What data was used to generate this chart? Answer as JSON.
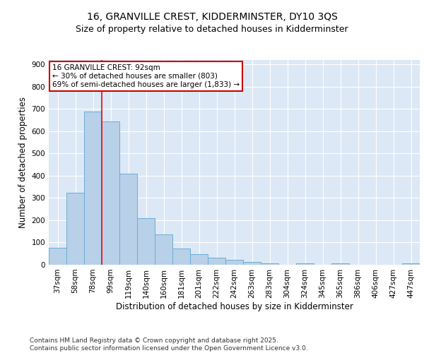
{
  "title": "16, GRANVILLE CREST, KIDDERMINSTER, DY10 3QS",
  "subtitle": "Size of property relative to detached houses in Kidderminster",
  "xlabel": "Distribution of detached houses by size in Kidderminster",
  "ylabel": "Number of detached properties",
  "bar_labels": [
    "37sqm",
    "58sqm",
    "78sqm",
    "99sqm",
    "119sqm",
    "140sqm",
    "160sqm",
    "181sqm",
    "201sqm",
    "222sqm",
    "242sqm",
    "263sqm",
    "283sqm",
    "304sqm",
    "324sqm",
    "345sqm",
    "365sqm",
    "386sqm",
    "406sqm",
    "427sqm",
    "447sqm"
  ],
  "bar_values": [
    75,
    325,
    690,
    645,
    410,
    208,
    135,
    72,
    47,
    33,
    22,
    12,
    5,
    0,
    5,
    0,
    5,
    0,
    0,
    0,
    7
  ],
  "bar_color": "#b8d0e8",
  "bar_edge_color": "#6baed6",
  "background_color": "#dce8f5",
  "grid_color": "#ffffff",
  "annotation_text": "16 GRANVILLE CREST: 92sqm\n← 30% of detached houses are smaller (803)\n69% of semi-detached houses are larger (1,833) →",
  "annotation_box_color": "#ffffff",
  "annotation_box_edge_color": "#cc0000",
  "red_line_index": 2.5,
  "ylim": [
    0,
    920
  ],
  "yticks": [
    0,
    100,
    200,
    300,
    400,
    500,
    600,
    700,
    800,
    900
  ],
  "footer_line1": "Contains HM Land Registry data © Crown copyright and database right 2025.",
  "footer_line2": "Contains public sector information licensed under the Open Government Licence v3.0.",
  "title_fontsize": 10,
  "subtitle_fontsize": 9,
  "axis_label_fontsize": 8.5,
  "tick_fontsize": 7.5,
  "annotation_fontsize": 7.5,
  "footer_fontsize": 6.5
}
